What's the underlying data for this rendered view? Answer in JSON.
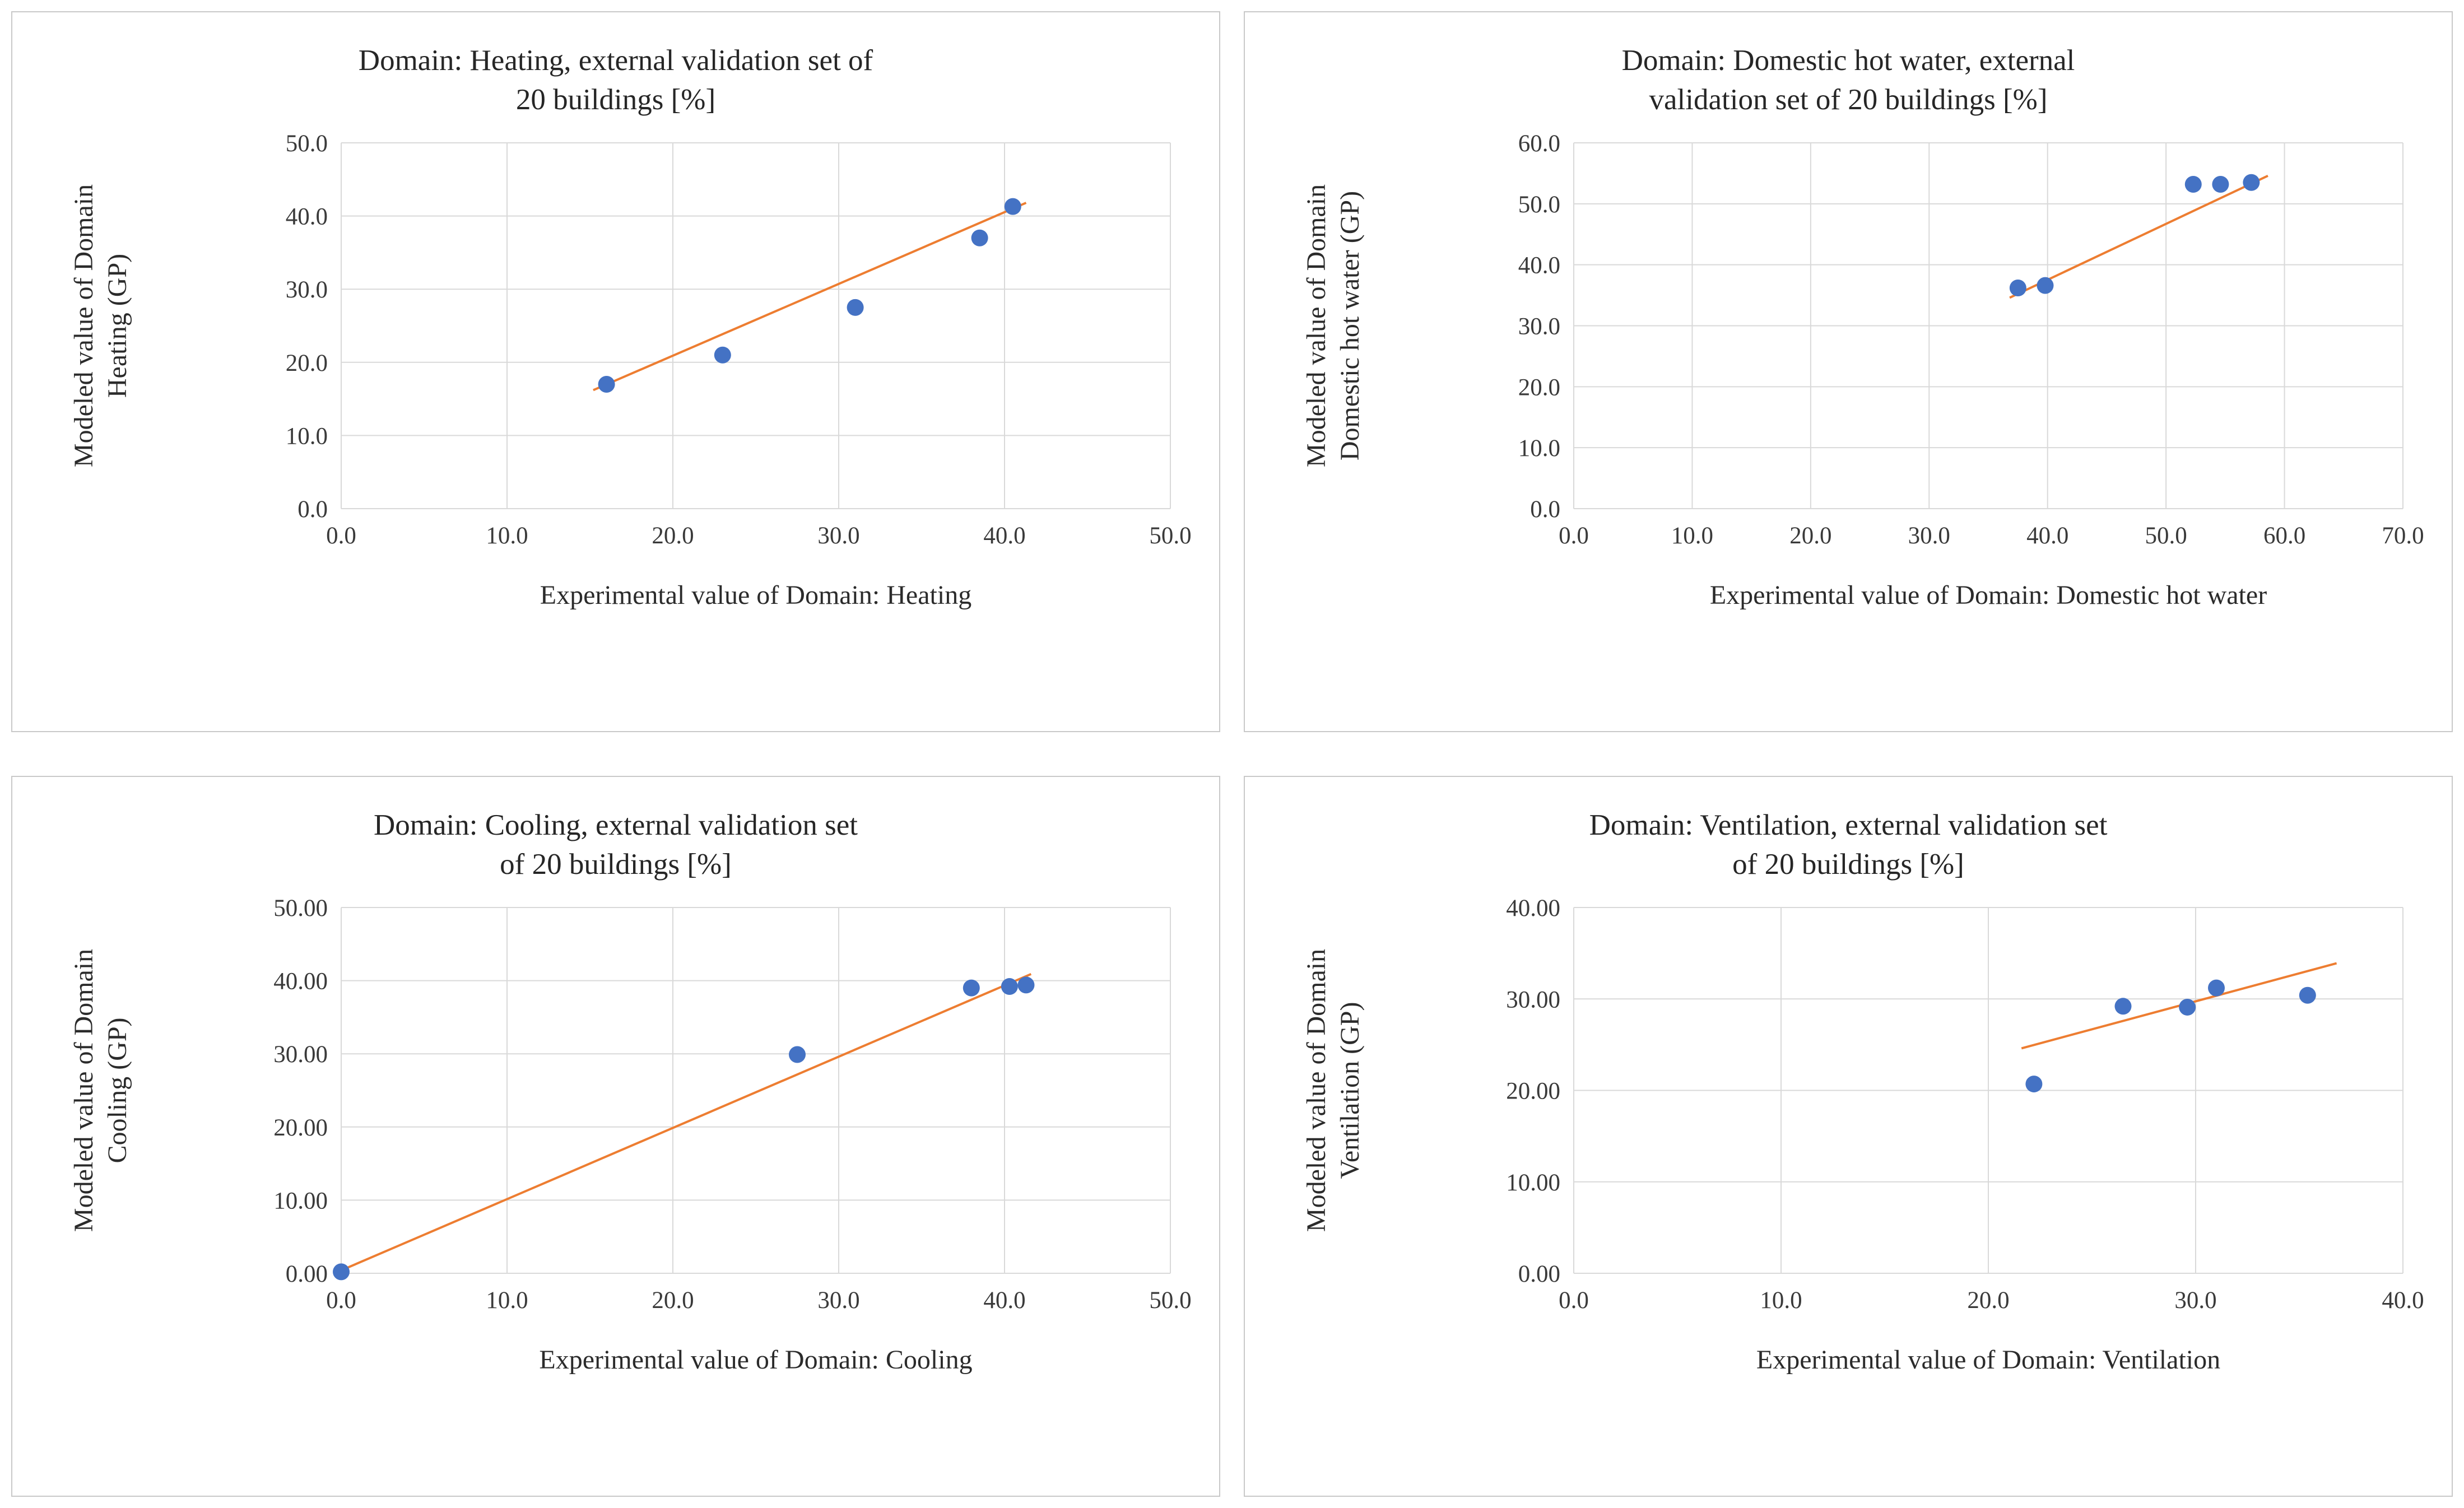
{
  "style": {
    "point_color": "#4472C4",
    "trend_color": "#ED7D31",
    "grid_color": "#D9D9D9",
    "title_color": "#262626",
    "panel_border": "#C9C9C9"
  },
  "chart_data": [
    {
      "type": "scatter",
      "title": "Domain: Heating, external validation set of 20 buildings [%]",
      "title_lines": [
        "Domain: Heating, external validation set of",
        "20 buildings [%]"
      ],
      "xlabel": "Experimental value of Domain: Heating",
      "ylabel": "Modeled value of Domain Heating (GP)",
      "ylabel_lines": [
        "Modeled value of Domain",
        "Heating (GP)"
      ],
      "xlim": [
        0,
        50
      ],
      "ylim": [
        0,
        50
      ],
      "xtick_values": [
        0,
        10,
        20,
        30,
        40,
        50
      ],
      "xtick_labels": [
        "0.0",
        "10.0",
        "20.0",
        "30.0",
        "40.0",
        "50.0"
      ],
      "ytick_values": [
        0,
        10,
        20,
        30,
        40,
        50
      ],
      "ytick_labels": [
        "0.0",
        "10.0",
        "20.0",
        "30.0",
        "40.0",
        "50.0"
      ],
      "points": [
        [
          16,
          17
        ],
        [
          23,
          21
        ],
        [
          31,
          27.5
        ],
        [
          38.5,
          37
        ],
        [
          40.5,
          41.3
        ]
      ],
      "trendline": {
        "x1": 15.2,
        "y1": 16.2,
        "x2": 41.3,
        "y2": 41.8
      },
      "grid": true,
      "legend": "none"
    },
    {
      "type": "scatter",
      "title": "Domain: Domestic hot water, external validation set of 20 buildings [%]",
      "title_lines": [
        "Domain: Domestic hot water, external",
        "validation set of 20 buildings [%]"
      ],
      "xlabel": "Experimental value of Domain: Domestic hot water",
      "ylabel": "Modeled value of Domain Domestic hot water (GP)",
      "ylabel_lines": [
        "Modeled value of Domain",
        "Domestic hot water (GP)"
      ],
      "xlim": [
        0,
        70
      ],
      "ylim": [
        0,
        60
      ],
      "xtick_values": [
        0,
        10,
        20,
        30,
        40,
        50,
        60,
        70
      ],
      "xtick_labels": [
        "0.0",
        "10.0",
        "20.0",
        "30.0",
        "40.0",
        "50.0",
        "60.0",
        "70.0"
      ],
      "ytick_values": [
        0,
        10,
        20,
        30,
        40,
        50,
        60
      ],
      "ytick_labels": [
        "0.0",
        "10.0",
        "20.0",
        "30.0",
        "40.0",
        "50.0",
        "60.0"
      ],
      "points": [
        [
          37.5,
          36.2
        ],
        [
          39.8,
          36.6
        ],
        [
          52.3,
          53.2
        ],
        [
          54.6,
          53.2
        ],
        [
          57.2,
          53.5
        ]
      ],
      "trendline": {
        "x1": 36.8,
        "y1": 34.6,
        "x2": 58.6,
        "y2": 54.6
      },
      "grid": true,
      "legend": "none"
    },
    {
      "type": "scatter",
      "title": "Domain: Cooling, external validation set of 20 buildings [%]",
      "title_lines": [
        "Domain: Cooling, external validation set",
        "of 20 buildings [%]"
      ],
      "xlabel": "Experimental value of Domain: Cooling",
      "ylabel": "Modeled value of Domain Cooling (GP)",
      "ylabel_lines": [
        "Modeled value of Domain",
        "Cooling (GP)"
      ],
      "xlim": [
        0,
        50
      ],
      "ylim": [
        0,
        50
      ],
      "xtick_values": [
        0,
        10,
        20,
        30,
        40,
        50
      ],
      "xtick_labels": [
        "0.0",
        "10.0",
        "20.0",
        "30.0",
        "40.0",
        "50.0"
      ],
      "ytick_values": [
        0,
        10,
        20,
        30,
        40,
        50
      ],
      "ytick_labels": [
        "0.00",
        "10.00",
        "20.00",
        "30.00",
        "40.00",
        "50.00"
      ],
      "points": [
        [
          0,
          0.2
        ],
        [
          27.5,
          29.9
        ],
        [
          38,
          39
        ],
        [
          40.3,
          39.2
        ],
        [
          41.3,
          39.4
        ]
      ],
      "trendline": {
        "x1": 0,
        "y1": 0.4,
        "x2": 41.6,
        "y2": 40.9
      },
      "grid": true,
      "legend": "none"
    },
    {
      "type": "scatter",
      "title": "Domain: Ventilation, external validation set of 20 buildings [%]",
      "title_lines": [
        "Domain: Ventilation, external validation set",
        "of 20 buildings [%]"
      ],
      "xlabel": "Experimental value of Domain: Ventilation",
      "ylabel": "Modeled value of Domain Ventilation (GP)",
      "ylabel_lines": [
        "Modeled value of Domain",
        "Ventilation (GP)"
      ],
      "xlim": [
        0,
        40
      ],
      "ylim": [
        0,
        40
      ],
      "xtick_values": [
        0,
        10,
        20,
        30,
        40
      ],
      "xtick_labels": [
        "0.0",
        "10.0",
        "20.0",
        "30.0",
        "40.0"
      ],
      "ytick_values": [
        0,
        10,
        20,
        30,
        40
      ],
      "ytick_labels": [
        "0.00",
        "10.00",
        "20.00",
        "30.00",
        "40.00"
      ],
      "points": [
        [
          22.2,
          20.7
        ],
        [
          26.5,
          29.2
        ],
        [
          29.6,
          29.1
        ],
        [
          31,
          31.2
        ],
        [
          35.4,
          30.4
        ]
      ],
      "trendline": {
        "x1": 21.6,
        "y1": 24.6,
        "x2": 36.8,
        "y2": 33.9
      },
      "grid": true,
      "legend": "none"
    }
  ]
}
